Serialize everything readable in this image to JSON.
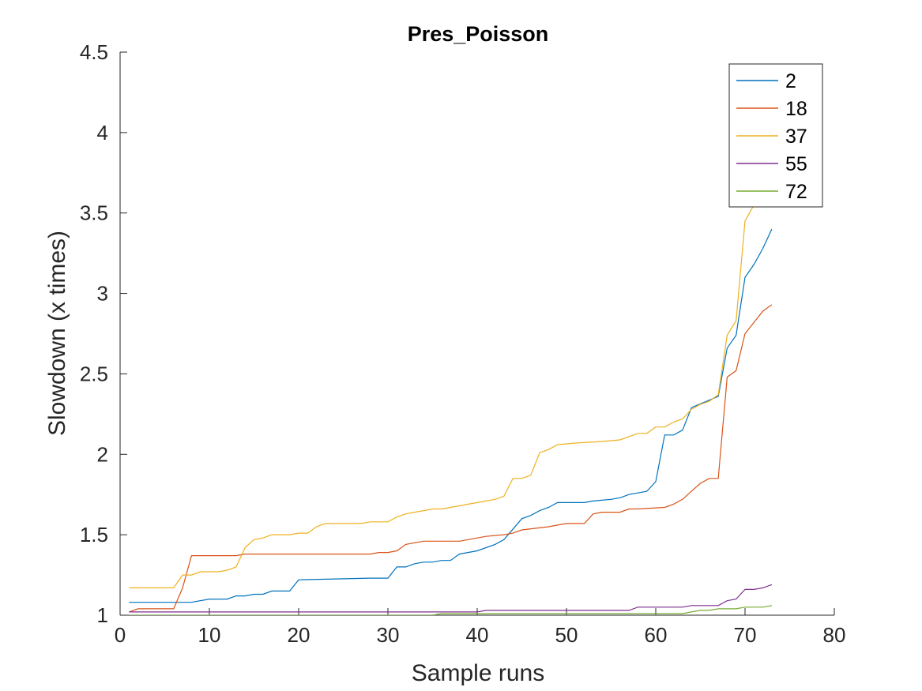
{
  "chart_data": {
    "type": "line",
    "title": "Pres_Poisson",
    "xlabel": "Sample runs",
    "ylabel": "Slowdown (x times)",
    "xlim": [
      0,
      80
    ],
    "ylim": [
      1,
      4.5
    ],
    "xticks": [
      0,
      10,
      20,
      30,
      40,
      50,
      60,
      70,
      80
    ],
    "yticks": [
      1,
      1.5,
      2,
      2.5,
      3,
      3.5,
      4,
      4.5
    ],
    "grid": false,
    "legend_position": "top-right",
    "series": [
      {
        "name": "2",
        "color": "#0072BD",
        "x": [
          1,
          7,
          8,
          10,
          12,
          13,
          14,
          15,
          16,
          17,
          19,
          20,
          28,
          30,
          31,
          32,
          33,
          34,
          35,
          36,
          37,
          38,
          40,
          42,
          43,
          45,
          46,
          47,
          48,
          49,
          52,
          53,
          55,
          56,
          57,
          58,
          59,
          60,
          61,
          62,
          63,
          64,
          67,
          68,
          69,
          70,
          71,
          72,
          73
        ],
        "y": [
          1.08,
          1.08,
          1.08,
          1.1,
          1.1,
          1.12,
          1.12,
          1.13,
          1.13,
          1.15,
          1.15,
          1.22,
          1.23,
          1.23,
          1.3,
          1.3,
          1.32,
          1.33,
          1.33,
          1.34,
          1.34,
          1.38,
          1.4,
          1.44,
          1.47,
          1.6,
          1.62,
          1.65,
          1.67,
          1.7,
          1.7,
          1.71,
          1.72,
          1.73,
          1.75,
          1.76,
          1.77,
          1.83,
          2.12,
          2.12,
          2.15,
          2.29,
          2.36,
          2.66,
          2.74,
          3.1,
          3.18,
          3.28,
          3.4
        ]
      },
      {
        "name": "18",
        "color": "#D95319",
        "x": [
          1,
          2,
          6,
          7,
          8,
          13,
          14,
          15,
          28,
          29,
          30,
          31,
          32,
          33,
          34,
          35,
          38,
          39,
          40,
          41,
          43,
          44,
          45,
          48,
          49,
          50,
          52,
          53,
          54,
          56,
          57,
          58,
          61,
          62,
          63,
          64,
          65,
          66,
          67,
          68,
          69,
          70,
          71,
          72,
          73
        ],
        "y": [
          1.02,
          1.04,
          1.04,
          1.17,
          1.37,
          1.37,
          1.38,
          1.38,
          1.38,
          1.39,
          1.39,
          1.4,
          1.44,
          1.45,
          1.46,
          1.46,
          1.46,
          1.47,
          1.48,
          1.49,
          1.5,
          1.51,
          1.53,
          1.55,
          1.56,
          1.57,
          1.57,
          1.63,
          1.64,
          1.64,
          1.66,
          1.66,
          1.67,
          1.69,
          1.72,
          1.77,
          1.82,
          1.85,
          1.85,
          2.48,
          2.52,
          2.75,
          2.82,
          2.89,
          2.93
        ]
      },
      {
        "name": "37",
        "color": "#EDB120",
        "x": [
          1,
          6,
          7,
          8,
          9,
          11,
          12,
          13,
          14,
          15,
          16,
          17,
          18,
          19,
          20,
          21,
          22,
          23,
          27,
          28,
          30,
          31,
          32,
          33,
          34,
          35,
          36,
          37,
          38,
          39,
          40,
          41,
          42,
          43,
          44,
          45,
          46,
          47,
          48,
          49,
          51,
          54,
          56,
          57,
          58,
          59,
          60,
          61,
          62,
          63,
          64,
          65,
          66,
          67,
          68,
          69,
          70,
          71,
          72
        ],
        "y": [
          1.17,
          1.17,
          1.25,
          1.25,
          1.27,
          1.27,
          1.28,
          1.3,
          1.42,
          1.47,
          1.48,
          1.5,
          1.5,
          1.5,
          1.51,
          1.51,
          1.55,
          1.57,
          1.57,
          1.58,
          1.58,
          1.61,
          1.63,
          1.64,
          1.65,
          1.66,
          1.66,
          1.67,
          1.68,
          1.69,
          1.7,
          1.71,
          1.72,
          1.74,
          1.85,
          1.85,
          1.87,
          2.01,
          2.03,
          2.06,
          2.07,
          2.08,
          2.09,
          2.11,
          2.13,
          2.13,
          2.17,
          2.17,
          2.2,
          2.22,
          2.28,
          2.31,
          2.33,
          2.37,
          2.74,
          2.83,
          3.45,
          3.55,
          3.6
        ]
      },
      {
        "name": "55",
        "color": "#7E2F8E",
        "x": [
          1,
          40,
          41,
          57,
          58,
          63,
          64,
          67,
          68,
          69,
          70,
          71,
          72,
          73
        ],
        "y": [
          1.02,
          1.02,
          1.03,
          1.03,
          1.05,
          1.05,
          1.06,
          1.06,
          1.09,
          1.1,
          1.16,
          1.16,
          1.17,
          1.19
        ]
      },
      {
        "name": "72",
        "color": "#77AC30",
        "x": [
          1,
          35,
          36,
          40,
          41,
          63,
          64,
          65,
          66,
          67,
          68,
          69,
          70,
          72,
          73
        ],
        "y": [
          1.0,
          1.0,
          1.01,
          1.01,
          1.01,
          1.01,
          1.02,
          1.03,
          1.03,
          1.04,
          1.04,
          1.04,
          1.05,
          1.05,
          1.06
        ]
      }
    ]
  }
}
